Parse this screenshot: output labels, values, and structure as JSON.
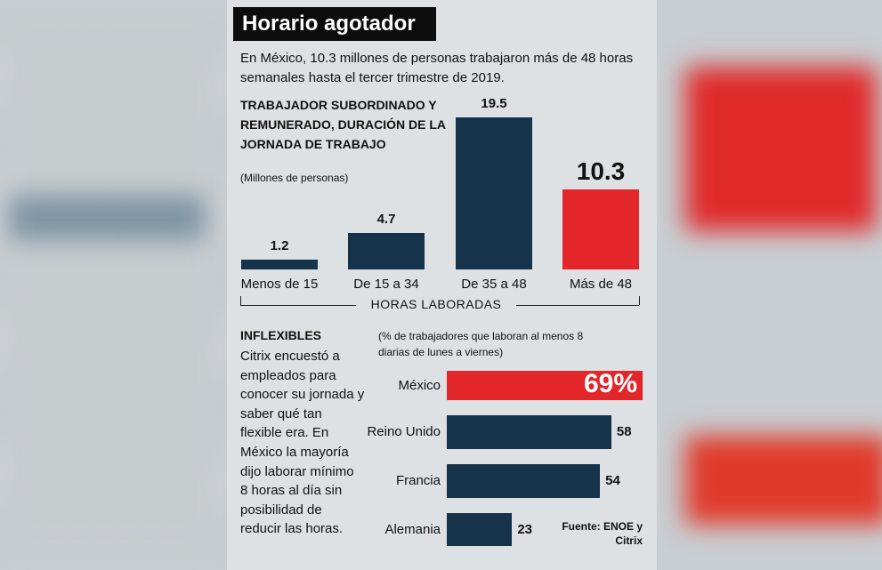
{
  "header": {
    "title": "Horario agotador",
    "intro": "En México, 10.3 millones de personas trabajaron más de 48 horas semanales hasta el tercer trimestre de 2019."
  },
  "chart_data": [
    {
      "type": "bar",
      "title": "TRABAJADOR SUBORDINADO Y REMUNERADO, DURACIÓN DE LA JORNADA DE TRABAJO",
      "subtitle": "(Millones de personas)",
      "x_label": "HORAS LABORADAS",
      "categories": [
        "Menos de 15",
        "De 15 a 34",
        "De 35 a 48",
        "Más de 48"
      ],
      "values": [
        1.2,
        4.7,
        19.5,
        10.3
      ],
      "colors": [
        "#15334a",
        "#15334a",
        "#15334a",
        "#e3262a"
      ]
    },
    {
      "type": "hbar",
      "subtitle": "(% de trabajadores que laboran al menos 8 diarias de lunes a viernes)",
      "categories": [
        "México",
        "Reino Unido",
        "Francia",
        "Alemania"
      ],
      "values": [
        69,
        58,
        54,
        23
      ],
      "value_labels": [
        "69%",
        "58",
        "54",
        "23"
      ],
      "colors": [
        "#e3262a",
        "#15334a",
        "#15334a",
        "#15334a"
      ]
    }
  ],
  "sidebar": {
    "title": "INFLEXIBLES",
    "text": "Citrix encuestó a empleados para conocer su jornada y saber qué tan flexible era. En México la mayoría dijo laborar mínimo 8 horas al día sin posibilidad de reducir las horas."
  },
  "source": "Fuente: ENOE y Citrix"
}
